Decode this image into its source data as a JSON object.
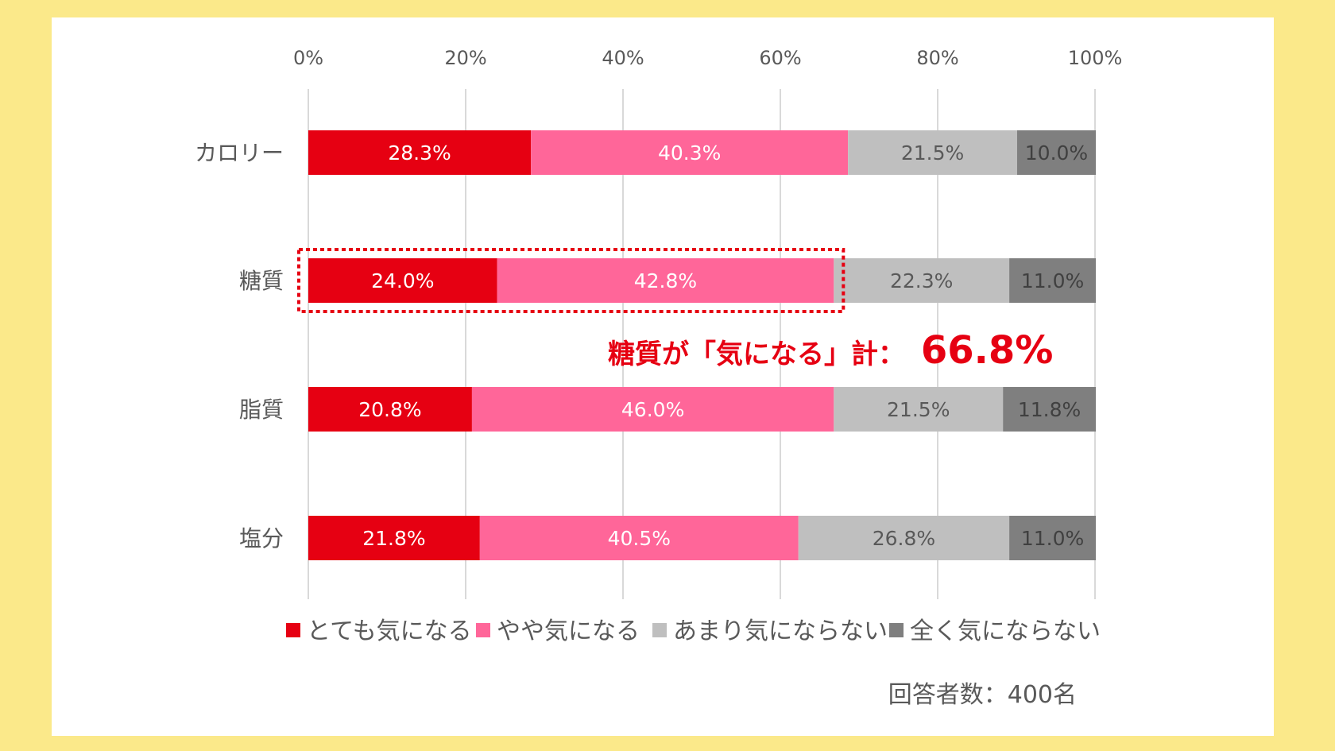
{
  "chart_data": {
    "type": "bar",
    "orientation": "horizontal",
    "stacked": true,
    "categories": [
      "カロリー",
      "糖質",
      "脂質",
      "塩分"
    ],
    "series": [
      {
        "name": "とても気になる",
        "color": "#e60012",
        "label_color": "#ffffff",
        "values": [
          28.3,
          24.0,
          20.8,
          21.8
        ],
        "labels": [
          "28.3%",
          "24.0%",
          "20.8%",
          "21.8%"
        ]
      },
      {
        "name": "やや気になる",
        "color": "#ff6699",
        "label_color": "#ffffff",
        "values": [
          40.3,
          42.8,
          46.0,
          40.5
        ],
        "labels": [
          "40.3%",
          "42.8%",
          "46.0%",
          "40.5%"
        ]
      },
      {
        "name": "あまり気にならない",
        "color": "#bfbfbf",
        "label_color": "#595959",
        "values": [
          21.5,
          22.3,
          21.5,
          26.8
        ],
        "labels": [
          "21.5%",
          "22.3%",
          "21.5%",
          "26.8%"
        ]
      },
      {
        "name": "全く気にならない",
        "color": "#7f7f7f",
        "label_color": "#404040",
        "values": [
          10.0,
          11.0,
          11.8,
          11.0
        ],
        "labels": [
          "10.0%",
          "11.0%",
          "11.8%",
          "11.0%"
        ]
      }
    ],
    "xlim": [
      0,
      100
    ],
    "x_ticks": [
      "0%",
      "20%",
      "40%",
      "60%",
      "80%",
      "100%"
    ],
    "x_axis_position": "top",
    "grid": true,
    "legend_position": "bottom",
    "callout": {
      "category": "糖質",
      "text": "糖質が「気になる」計：",
      "value": "66.8%",
      "color": "#e60012"
    },
    "note": "回答者数：400名"
  }
}
